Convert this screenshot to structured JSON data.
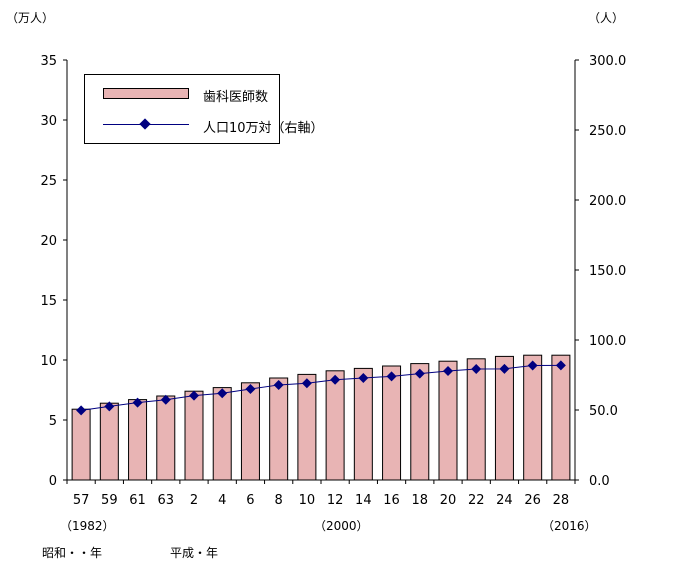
{
  "chart_data": {
    "type": "bar",
    "categories": [
      "57",
      "59",
      "61",
      "63",
      "2",
      "4",
      "6",
      "8",
      "10",
      "12",
      "14",
      "16",
      "18",
      "20",
      "22",
      "24",
      "26",
      "28"
    ],
    "series": [
      {
        "name": "歯科医師数",
        "type": "bar",
        "axis": "left",
        "color": "#e8b4b4",
        "values": [
          5.9,
          6.4,
          6.7,
          7.0,
          7.4,
          7.7,
          8.1,
          8.5,
          8.8,
          9.1,
          9.3,
          9.5,
          9.7,
          9.9,
          10.1,
          10.3,
          10.4,
          10.4
        ]
      },
      {
        "name": "人口10万対（右軸）",
        "type": "line",
        "axis": "right",
        "color": "#000080",
        "values": [
          49.7,
          52.6,
          55.3,
          57.3,
          60.3,
          62.0,
          65.0,
          67.9,
          69.1,
          71.6,
          72.9,
          74.0,
          76.0,
          77.9,
          79.3,
          79.4,
          81.8,
          81.9
        ]
      }
    ],
    "y_left": {
      "unit": "（万人）",
      "ylim": [
        0,
        35
      ],
      "ticks": [
        "0",
        "5",
        "10",
        "15",
        "20",
        "25",
        "30",
        "35"
      ]
    },
    "y_right": {
      "unit": "（人）",
      "ylim": [
        0,
        300
      ],
      "ticks": [
        "0.0",
        "50.0",
        "100.0",
        "150.0",
        "200.0",
        "250.0",
        "300.0"
      ]
    },
    "grid": false,
    "legend_position": "top-left",
    "notes": {
      "year_1982": "（1982）",
      "year_2000": "（2000）",
      "year_2016": "（2016）",
      "era_showa": "昭和・・年",
      "era_heisei": "平成・年"
    }
  }
}
